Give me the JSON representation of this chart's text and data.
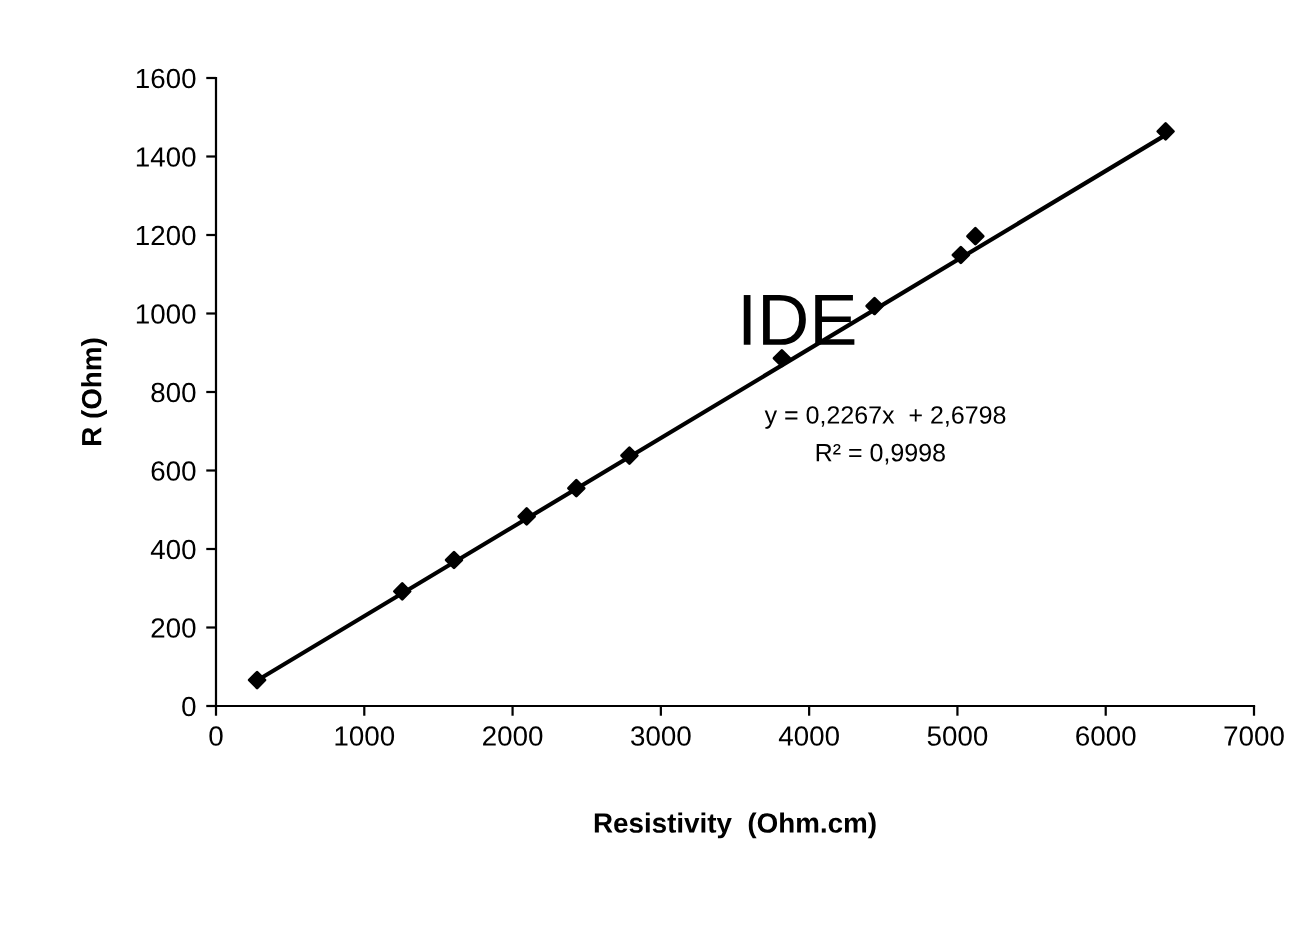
{
  "chart_data": {
    "type": "scatter",
    "xlabel": "Resistivity  (Ohm.cm)",
    "ylabel": "R (Ohm)",
    "annotations": [
      "IDE",
      "y = 0,2267x  + 2,6798",
      "R² = 0,9998"
    ],
    "series": [
      {
        "color": "#000000",
        "marker": "diamond",
        "x": [
          277,
          1256,
          1605,
          2095,
          2430,
          2788,
          3816,
          4441,
          5023,
          5121,
          6404
        ],
        "values": [
          66,
          292,
          372,
          483,
          555,
          638,
          886,
          1019,
          1149,
          1197,
          1464
        ]
      },
      {
        "type": "line",
        "color": "#000000",
        "marker": "none",
        "x": [
          277,
          6404
        ],
        "values": [
          65,
          1455
        ]
      }
    ],
    "xlim": [
      0,
      7000
    ],
    "xticks": [
      0,
      1000,
      2000,
      3000,
      4000,
      5000,
      6000,
      7000
    ],
    "ylim": [
      0,
      1600
    ],
    "yticks": [
      0,
      200,
      400,
      600,
      800,
      1000,
      1200,
      1400,
      1600
    ],
    "grid": false,
    "legend": false
  }
}
